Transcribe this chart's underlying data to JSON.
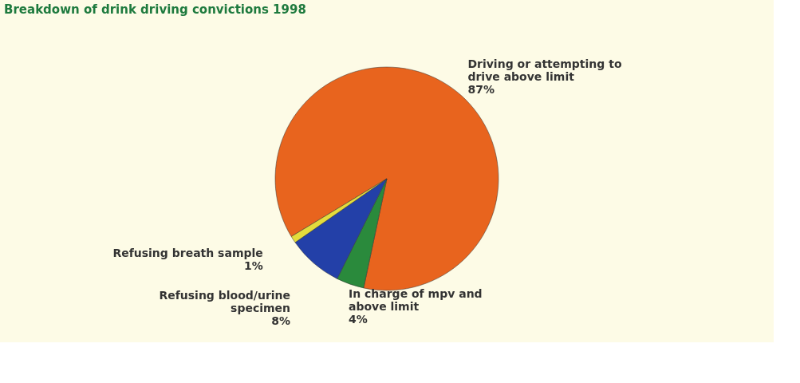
{
  "chart_data": {
    "type": "pie",
    "title": "Breakdown of drink driving convictions 1998",
    "categories": [
      "Driving or attempting to drive above limit",
      "In charge of mpv and above limit",
      "Refusing blood/urine specimen",
      "Refusing breath sample"
    ],
    "values": [
      87,
      4,
      8,
      1
    ],
    "value_labels": [
      "87%",
      "4%",
      "8%",
      "1%"
    ],
    "colors": [
      "#e8641e",
      "#2a8a3c",
      "#2340a8",
      "#e4dc3c"
    ],
    "legend": false
  }
}
